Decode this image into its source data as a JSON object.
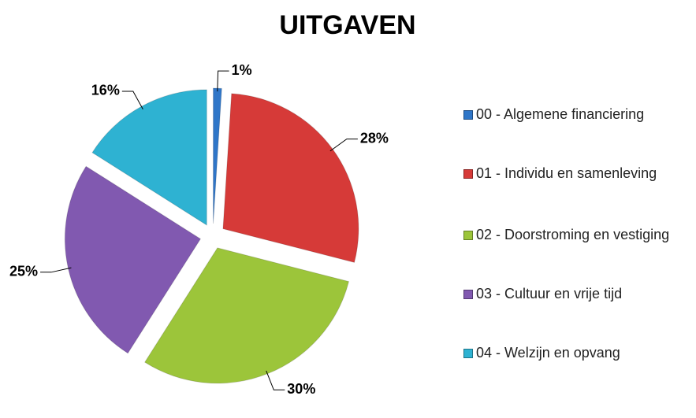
{
  "chart_data": {
    "type": "pie",
    "title": "UITGAVEN",
    "categories": [
      "00 - Algemene financiering",
      "01 - Individu en samenleving",
      "02 - Doorstroming en vestiging",
      "03 - Cultuur en vrije tijd",
      "04 - Welzijn en opvang"
    ],
    "values": [
      1,
      28,
      30,
      25,
      16
    ],
    "value_labels": [
      "1%",
      "28%",
      "30%",
      "25%",
      "16%"
    ],
    "colors": [
      "#2f76c8",
      "#d63a38",
      "#9cc53a",
      "#8159b0",
      "#2eb2d2"
    ],
    "legend": "right"
  }
}
